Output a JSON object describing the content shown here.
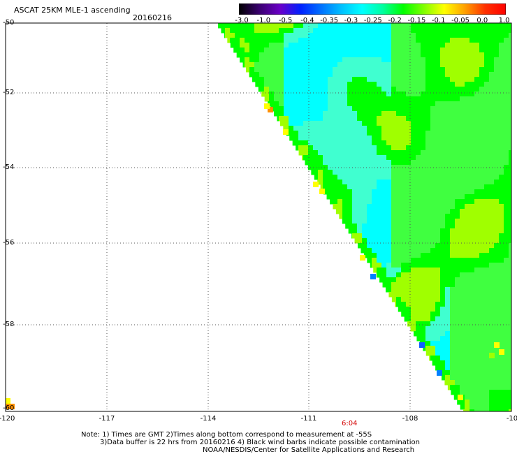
{
  "header": {
    "title": "ASCAT 25KM MLE-1 ascending",
    "date": "20160216"
  },
  "colorbar": {
    "labels": [
      "-3.0",
      "-1.0",
      "-0.5",
      "-0.4",
      "-0.35",
      "-0.3",
      "-0.25",
      "-0.2",
      "-0.15",
      "-0.1",
      "-0.05",
      "0.0",
      "1.0"
    ],
    "colors": [
      "#000000",
      "#3a0070",
      "#6a00c8",
      "#0020ff",
      "#0070ff",
      "#00c0ff",
      "#00ffff",
      "#00ffa0",
      "#00ff00",
      "#80ff00",
      "#ffff00",
      "#ffa000",
      "#ff3000",
      "#ff0000"
    ]
  },
  "axes": {
    "lat_labels": [
      "-50",
      "-52",
      "-54",
      "-56",
      "-58",
      "-60"
    ],
    "lon_labels": [
      "-120",
      "-117",
      "-114",
      "-111",
      "-108",
      "-10"
    ]
  },
  "time_label": "6:04",
  "notes": {
    "line1": "Note: 1) Times are GMT 2)Times along bottom correspond to measurement at -55S",
    "line2": "3)Data buffer is 22 hrs from 20160216 4) Black wind barbs indicate possible contamination",
    "line3": "NOAA/NESDIS/Center for Satellite Applications and Research"
  },
  "map_colors": {
    "cyan": "#00ffff",
    "light_cyan": "#40ffd0",
    "green": "#00ff00",
    "light_green": "#40ff40",
    "yellow_green": "#a0ff00",
    "yellow": "#ffff00",
    "orange": "#ff9000",
    "blue": "#0080ff",
    "blue2": "#1060ff",
    "gridline": "#555555"
  }
}
